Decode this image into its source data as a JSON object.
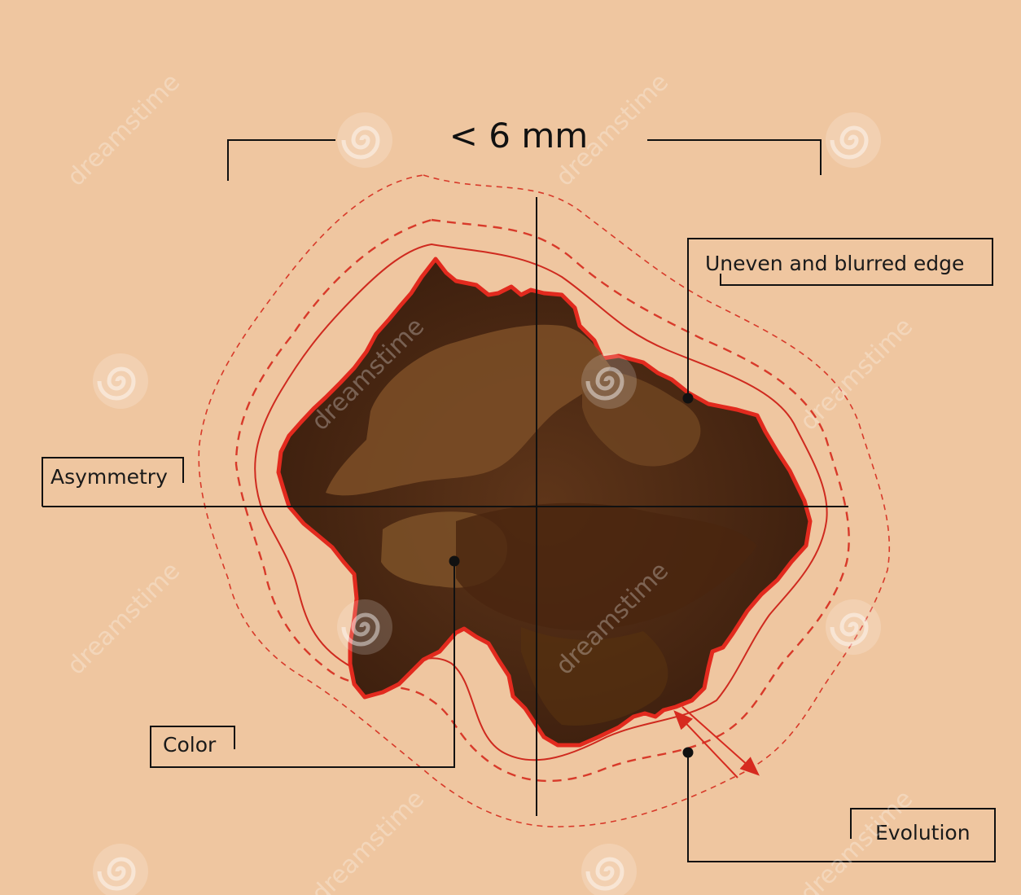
{
  "size_label": "< 6 mm",
  "labels": {
    "asymmetry": "Asymmetry",
    "edge": "Uneven and blurred edge",
    "color": "Color",
    "evolution": "Evolution"
  },
  "watermark": {
    "text": "dreamstime",
    "icon": "spiral-logo-icon"
  },
  "colors": {
    "skin": "#efc6a0",
    "mole_dark": "#3f2110",
    "mole_mid": "#5c3418",
    "mole_light": "#7d5128",
    "border_red": "#e0261c",
    "outline_red": "#c91f1f",
    "lines": "#111111"
  }
}
